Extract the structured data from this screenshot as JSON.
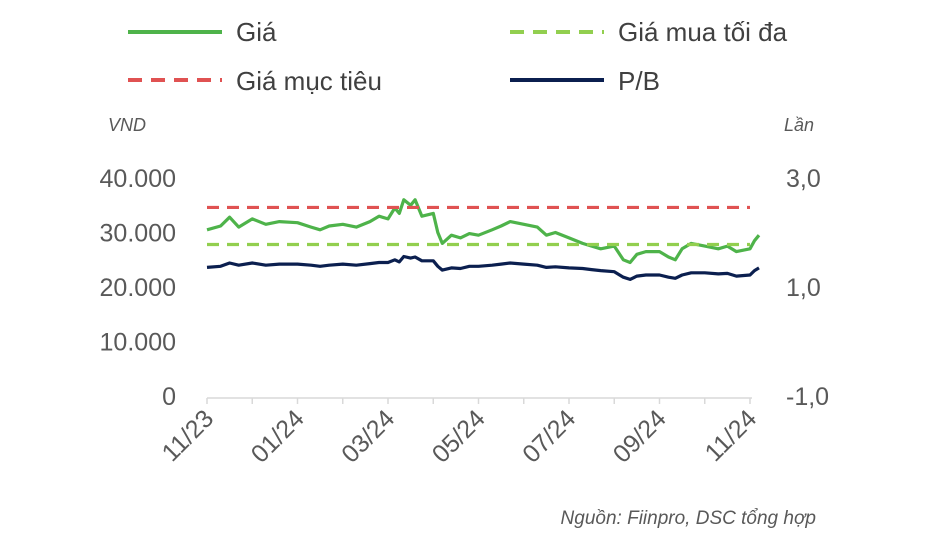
{
  "chart_data": {
    "type": "line",
    "title": "",
    "legend_placement": "top",
    "y_left_label": "VND",
    "y_right_label": "Lần",
    "y_left_ticks": [
      "0",
      "10.000",
      "20.000",
      "30.000",
      "40.000"
    ],
    "y_right_ticks": [
      "-1,0",
      "1,0",
      "3,0"
    ],
    "y_left_lim": [
      0,
      40000
    ],
    "y_right_lim": [
      -1.0,
      3.0
    ],
    "x_tick_labels": [
      "11/23",
      "01/24",
      "03/24",
      "05/24",
      "07/24",
      "09/24",
      "11/24"
    ],
    "x_range": [
      "11/23",
      "11/24"
    ],
    "grid": false,
    "source": "Nguồn: Fiinpro, DSC tổng hợp",
    "series": [
      {
        "name": "Giá",
        "axis": "left",
        "style": "solid",
        "color": "#4eb34a",
        "points": [
          [
            "11/23",
            30500
          ],
          [
            "11/23+0.3",
            31200
          ],
          [
            "11/23+0.5",
            32800
          ],
          [
            "11/23+0.7",
            31000
          ],
          [
            "12/23",
            32500
          ],
          [
            "12/23+0.3",
            31500
          ],
          [
            "12/23+0.6",
            32000
          ],
          [
            "01/24",
            31800
          ],
          [
            "01/24+0.3",
            31000
          ],
          [
            "01/24+0.5",
            30500
          ],
          [
            "01/24+0.7",
            31200
          ],
          [
            "02/24",
            31500
          ],
          [
            "02/24+0.3",
            31000
          ],
          [
            "02/24+0.6",
            32000
          ],
          [
            "02/24+0.8",
            33000
          ],
          [
            "03/24",
            32500
          ],
          [
            "03/24+0.15",
            34500
          ],
          [
            "03/24+0.25",
            33500
          ],
          [
            "03/24+0.35",
            36000
          ],
          [
            "03/24+0.5",
            35000
          ],
          [
            "03/24+0.6",
            36000
          ],
          [
            "03/24+0.75",
            33000
          ],
          [
            "04/24",
            33500
          ],
          [
            "04/24+0.1",
            30000
          ],
          [
            "04/24+0.2",
            28000
          ],
          [
            "04/24+0.4",
            29500
          ],
          [
            "04/24+0.6",
            29000
          ],
          [
            "04/24+0.8",
            29800
          ],
          [
            "05/24",
            29500
          ],
          [
            "05/24+0.3",
            30500
          ],
          [
            "05/24+0.5",
            31200
          ],
          [
            "05/24+0.7",
            32000
          ],
          [
            "06/24",
            31500
          ],
          [
            "06/24+0.3",
            31000
          ],
          [
            "06/24+0.5",
            29500
          ],
          [
            "06/24+0.7",
            30000
          ],
          [
            "07/24",
            29000
          ],
          [
            "07/24+0.3",
            28000
          ],
          [
            "07/24+0.5",
            27500
          ],
          [
            "07/24+0.7",
            27000
          ],
          [
            "08/24",
            27500
          ],
          [
            "08/24+0.2",
            25000
          ],
          [
            "08/24+0.35",
            24500
          ],
          [
            "08/24+0.5",
            26000
          ],
          [
            "08/24+0.7",
            26500
          ],
          [
            "09/24",
            26500
          ],
          [
            "09/24+0.2",
            25500
          ],
          [
            "09/24+0.35",
            25000
          ],
          [
            "09/24+0.5",
            27000
          ],
          [
            "09/24+0.7",
            28000
          ],
          [
            "10/24",
            27500
          ],
          [
            "10/24+0.3",
            27000
          ],
          [
            "10/24+0.5",
            27500
          ],
          [
            "10/24+0.7",
            26500
          ],
          [
            "11/24",
            27000
          ],
          [
            "11/24+0.1",
            28500
          ],
          [
            "11/24+0.2",
            29500
          ]
        ]
      },
      {
        "name": "Giá mua tối đa",
        "axis": "left",
        "style": "dashed",
        "color": "#92cf4f",
        "value": 27800
      },
      {
        "name": "Giá mục tiêu",
        "axis": "left",
        "style": "dashed",
        "color": "#e05252",
        "value": 34600
      },
      {
        "name": "P/B",
        "axis": "right",
        "style": "solid",
        "color": "#0b1f4f",
        "points": [
          [
            "11/23",
            1.36
          ],
          [
            "11/23+0.3",
            1.38
          ],
          [
            "11/23+0.5",
            1.44
          ],
          [
            "11/23+0.7",
            1.4
          ],
          [
            "12/23",
            1.44
          ],
          [
            "12/23+0.3",
            1.4
          ],
          [
            "12/23+0.6",
            1.42
          ],
          [
            "01/24",
            1.42
          ],
          [
            "01/24+0.3",
            1.4
          ],
          [
            "01/24+0.5",
            1.38
          ],
          [
            "01/24+0.7",
            1.4
          ],
          [
            "02/24",
            1.42
          ],
          [
            "02/24+0.3",
            1.4
          ],
          [
            "02/24+0.6",
            1.43
          ],
          [
            "02/24+0.8",
            1.45
          ],
          [
            "03/24",
            1.45
          ],
          [
            "03/24+0.15",
            1.5
          ],
          [
            "03/24+0.25",
            1.46
          ],
          [
            "03/24+0.35",
            1.56
          ],
          [
            "03/24+0.5",
            1.53
          ],
          [
            "03/24+0.6",
            1.55
          ],
          [
            "03/24+0.75",
            1.48
          ],
          [
            "04/24",
            1.48
          ],
          [
            "04/24+0.1",
            1.38
          ],
          [
            "04/24+0.2",
            1.31
          ],
          [
            "04/24+0.4",
            1.35
          ],
          [
            "04/24+0.6",
            1.34
          ],
          [
            "04/24+0.8",
            1.38
          ],
          [
            "05/24",
            1.38
          ],
          [
            "05/24+0.3",
            1.4
          ],
          [
            "05/24+0.5",
            1.42
          ],
          [
            "05/24+0.7",
            1.44
          ],
          [
            "06/24",
            1.42
          ],
          [
            "06/24+0.3",
            1.4
          ],
          [
            "06/24+0.5",
            1.36
          ],
          [
            "06/24+0.7",
            1.37
          ],
          [
            "07/24",
            1.35
          ],
          [
            "07/24+0.3",
            1.34
          ],
          [
            "07/24+0.5",
            1.32
          ],
          [
            "07/24+0.7",
            1.3
          ],
          [
            "08/24",
            1.28
          ],
          [
            "08/24+0.2",
            1.18
          ],
          [
            "08/24+0.35",
            1.14
          ],
          [
            "08/24+0.5",
            1.2
          ],
          [
            "08/24+0.7",
            1.22
          ],
          [
            "09/24",
            1.22
          ],
          [
            "09/24+0.2",
            1.18
          ],
          [
            "09/24+0.35",
            1.16
          ],
          [
            "09/24+0.5",
            1.22
          ],
          [
            "09/24+0.7",
            1.26
          ],
          [
            "10/24",
            1.26
          ],
          [
            "10/24+0.3",
            1.24
          ],
          [
            "10/24+0.5",
            1.25
          ],
          [
            "10/24+0.7",
            1.2
          ],
          [
            "11/24",
            1.22
          ],
          [
            "11/24+0.1",
            1.3
          ],
          [
            "11/24+0.2",
            1.35
          ]
        ]
      }
    ]
  }
}
